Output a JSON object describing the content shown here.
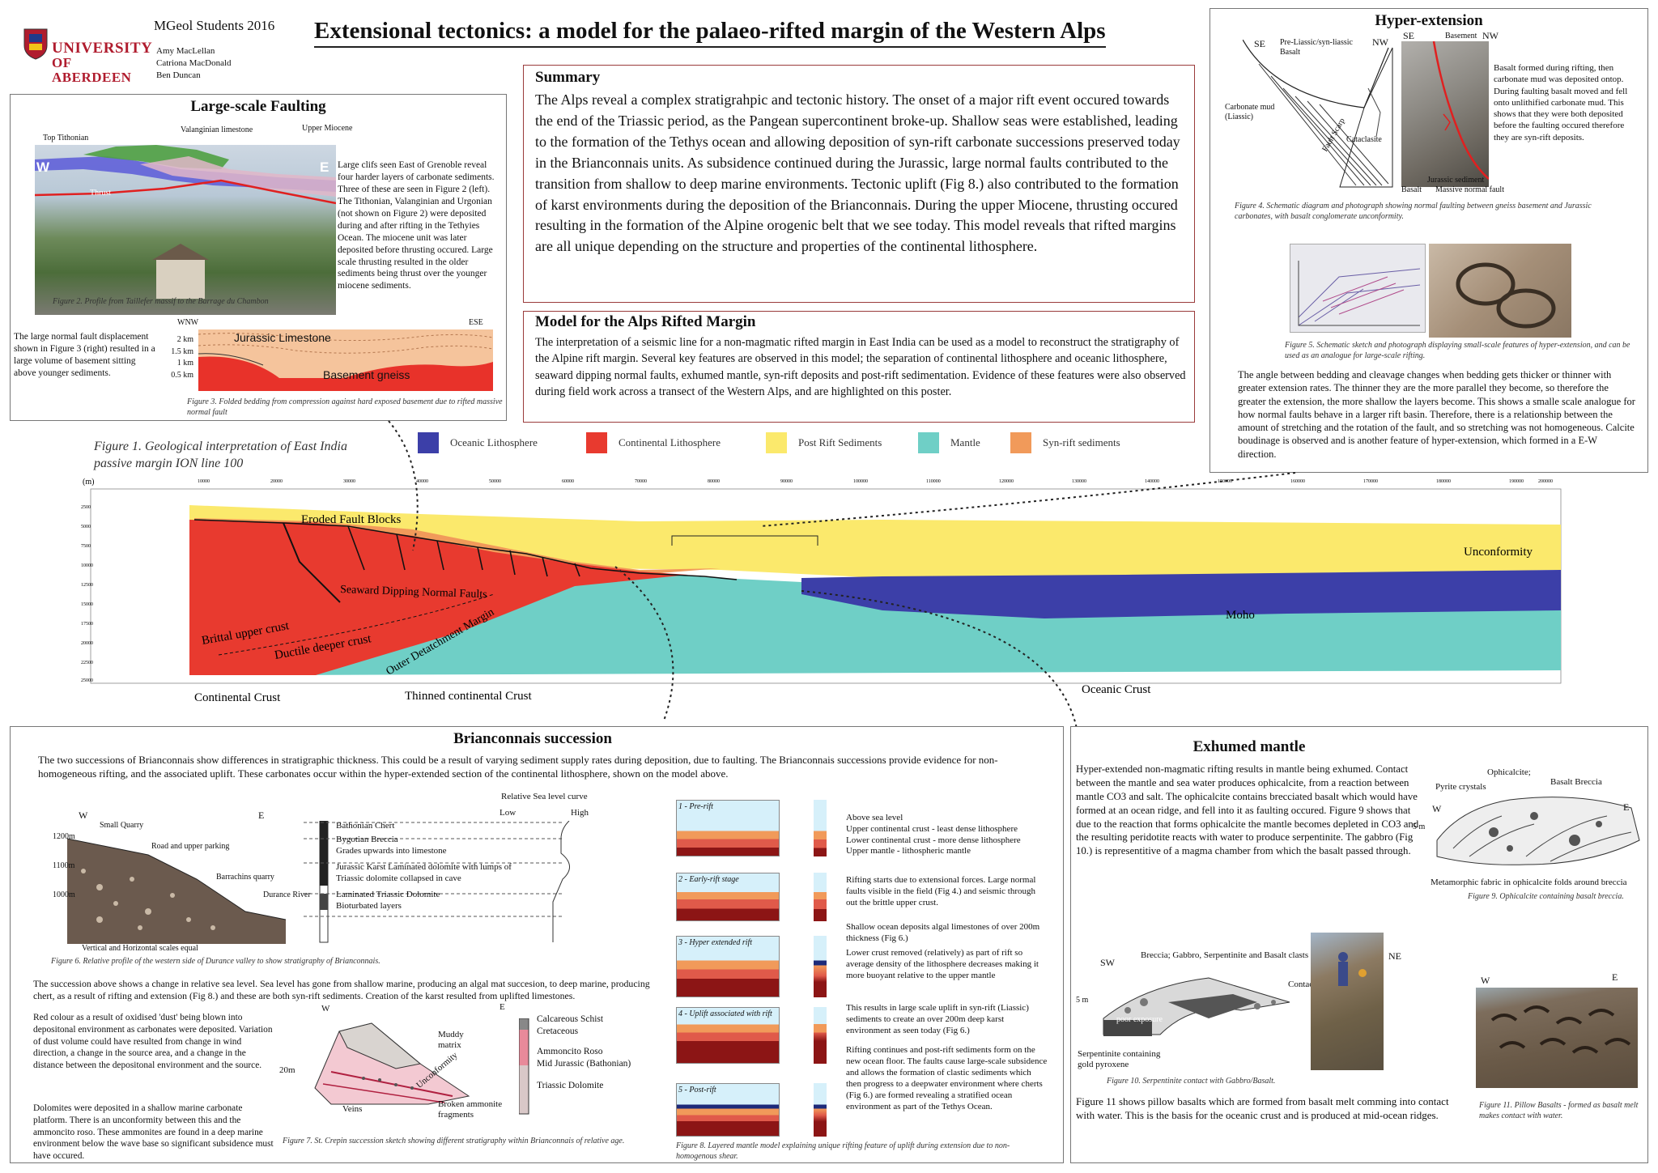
{
  "header": {
    "students": "MGeol Students 2016",
    "authors": [
      "Amy MacLellan",
      "Catriona MacDonald",
      "Ben Duncan"
    ],
    "university_line1": "UNIVERSITY",
    "university_line2": "OF ABERDEEN",
    "title": "Extensional tectonics: a model for the palaeo-rifted margin of the Western Alps"
  },
  "summary": {
    "title": "Summary",
    "text": "The Alps reveal a complex stratigrahpic and tectonic history. The onset of a major rift event occured towards the end of the Triassic period, as the Pangean supercontinent broke-up. Shallow seas were established, leading to the formation of the Tethys ocean and allowing deposition of syn-rift carbonate successions preserved today in the Brianconnais units. As subsidence continued during the Jurassic, large normal faults contributed to the transition from shallow to deep marine environments. Tectonic uplift (Fig 8.) also contributed to the formation of karst environments during the deposition of the Brianconnais. During the upper Miocene, thrusting occured resulting in the formation of the Alpine orogenic belt that we see today. This model reveals that rifted margins are all unique depending on the structure and properties of the continental lithosphere."
  },
  "model": {
    "title": "Model for the Alps Rifted Margin",
    "text": "The interpretation of a seismic line for a non-magmatic rifted margin in East India can be used as a model to reconstruct the stratigraphy of the Alpine rift margin. Several key features are observed in this model; the separation of continental lithosphere and oceanic lithosphere, seaward dipping normal faults, exhumed mantle, syn-rift deposits and post-rift sedimentation. Evidence of these features were also observed during field work across a transect of the Western Alps, and are highlighted on this poster."
  },
  "faulting": {
    "title": "Large-scale Faulting",
    "labels": {
      "top_tithonian": "Top Tithonian",
      "valanginian": "Valanginian limestone",
      "upper_miocene": "Upper Miocene",
      "w": "W",
      "e": "E",
      "thrust": "Thrust"
    },
    "text": "Large clifs seen East of Grenoble reveal four harder layers of carbonate sediments. Three of these are seen in Figure 2 (left). The Tithonian, Valanginian and Urgonian (not shown on Figure 2) were deposited during and after rifting in the Tethyies Ocean. The miocene unit was later deposited before thrusting occured. Large scale thrusting resulted in the older sediments being thrust over the younger miocene sediments.",
    "fig2_caption": "Figure 2. Profile from Taillefer massif to the Barrage du Chambon",
    "side_text": "The large normal fault displacement shown in Figure 3 (right) resulted in a large volume of basement sitting above younger sediments.",
    "fig3": {
      "wnw": "WNW",
      "ese": "ESE",
      "scale": [
        "2 km",
        "1.5 km",
        "1 km",
        "0.5 km"
      ],
      "jurassic": "Jurassic Limestone",
      "basement": "Basement gneiss"
    },
    "fig3_caption": "Figure 3. Folded bedding from compression against hard exposed basement due to rifted massive normal fault"
  },
  "hyper": {
    "title": "Hyper-extension",
    "fig4_labels": {
      "se": "SE",
      "nw": "NW",
      "pre_liassic": "Pre-Liassic/syn-liassic Basalt",
      "carbonate": "Carbonate mud (Liassic)",
      "fault_scarp": "Fault Scarp",
      "cataclasite": "Cataclasite",
      "basement": "Basement",
      "jurassic_sed": "Jurassic sediment",
      "basalt": "Basalt",
      "massive": "Massive normal fault"
    },
    "fig4_text": "Basalt formed during rifting, then carbonate mud was deposited ontop. During faulting basalt moved and fell onto unlithified carbonate mud. This shows that they were both deposited before the faulting occured therefore they are syn-rift deposits.",
    "fig4_caption": "Figure 4. Schematic diagram and photograph showing normal faulting between gneiss basement and Jurassic carbonates, with basalt conglomerate unconformity.",
    "fig5_caption": "Figure 5. Schematic sketch and photograph displaying small-scale features of hyper-extension, and can be used as an analogue for large-scale rifting.",
    "text": "The angle between bedding and cleavage changes when bedding gets thicker or thinner with greater extension rates. The thinner they are the more parallel they become, so therefore the greater the extension, the more shallow the layers become. This shows a smalle scale analogue for how normal faults behave in a larger rift basin. Therefore, there is a relationship between the amount of stretching and the rotation of the fault, and so stretching was not homogeneous. Calcite boudinage is observed and is another feature of hyper-extension, which formed in a E-W direction."
  },
  "fig1": {
    "caption": "Figure 1. Geological interpretation of East India passive margin ION line 100",
    "legend": [
      {
        "label": "Oceanic Lithosphere",
        "color": "#3c3fa8"
      },
      {
        "label": "Continental Lithosphere",
        "color": "#e83a2f"
      },
      {
        "label": "Post Rift Sediments",
        "color": "#fbe96c"
      },
      {
        "label": "Mantle",
        "color": "#6fcfc6"
      },
      {
        "label": "Syn-rift sediments",
        "color": "#f19a5a"
      }
    ],
    "y_unit": "(m)",
    "y_ticks": [
      "2500",
      "5000",
      "7500",
      "10000",
      "12500",
      "15000",
      "17500",
      "20000",
      "22500",
      "25000"
    ],
    "x_ticks": [
      "10000",
      "20000",
      "30000",
      "40000",
      "50000",
      "60000",
      "70000",
      "80000",
      "90000",
      "100000",
      "110000",
      "120000",
      "130000",
      "140000",
      "150000",
      "160000",
      "170000",
      "180000",
      "190000",
      "200000"
    ],
    "labels": {
      "eroded": "Eroded Fault Blocks",
      "seaward": "Seaward Dipping Normal Faults",
      "brittal": "Brittal upper crust",
      "ductile": "Ductile deeper crust",
      "outer": "Outer Detatchment Margin",
      "unconformity": "Unconformity",
      "moho": "Moho",
      "continental": "Continental Crust",
      "thinned": "Thinned continental Crust",
      "oceanic": "Oceanic Crust"
    }
  },
  "brianconnais": {
    "title": "Brianconnais succession",
    "intro": "The two successions of Brianconnais show differences in stratigraphic thickness. This could be a result of varying sediment supply rates during deposition, due to faulting. The Brianconnais successions provide evidence for non-homogeneous rifting, and the associated uplift. These carbonates occur within the hyper-extended section of the continental lithosphere, shown on the model above.",
    "fig6_labels": {
      "w": "W",
      "e": "E",
      "small_quarry": "Small Quarry",
      "road": "Road and upper parking",
      "barrachins": "Barrachins quarry",
      "durance": "Durance River",
      "scales": "Vertical and Horizontal scales equal",
      "h1200": "1200m",
      "h1100": "1100m",
      "h1000": "1000m"
    },
    "strat": [
      "Bathonian Chert",
      "Bygotian Breccia",
      "Grades upwards into limestone",
      "Jurassic Karst Laminated dolomite with lumps of Triassic dolomite collapsed in cave",
      "Laminated Triassic Dolomite",
      "Bioturbated layers"
    ],
    "sea_level": {
      "title": "Relative Sea level curve",
      "low": "Low",
      "high": "High"
    },
    "fig6_caption": "Figure 6. Relative profile of the western side of Durance valley to show stratigraphy of Brianconnais.",
    "succession_text": "The succession above shows a change in relative sea level. Sea level has gone from shallow marine, producing an algal mat succesion, to deep marine, producing chert, as a result of rifting and extension (Fig 8.) and these are both syn-rift sediments. Creation of the karst resulted from uplifted limestones.",
    "red_text": "Red colour as a result of oxidised 'dust' being blown into depositonal environment as carbonates were deposited. Variation of dust volume could have resulted from change in wind direction, a change in the source area, and a change in the distance between the depositonal environment and the source.",
    "dolomite_text": "Dolomites were deposited in a shallow marine carbonate platform. There is an unconformity between this and the ammoncito roso. These ammonites are found in a deep marine environment below the wave base so significant subsidence must have occured.",
    "fig7_labels": {
      "w": "W",
      "e": "E",
      "h20": "20m",
      "muddy": "Muddy matrix",
      "unconf": "Unconformity",
      "veins": "Veins",
      "broken": "Broken ammonite fragments"
    },
    "fig7_legend": [
      "Calcareous Schist",
      "Cretaceous",
      "Ammoncito Roso",
      "Mid Jurassic (Bathonian)",
      "Triassic Dolomite"
    ],
    "fig7_caption": "Figure 7. St. Crepin succession sketch showing different stratigraphy within Brianconnais of relative age."
  },
  "fig8": {
    "stages": [
      "1 - Pre-rift",
      "2 - Early-rift stage",
      "3 - Hyper extended rift",
      "4 - Uplift associated with rift",
      "5 - Post-rift"
    ],
    "layers": [
      "Above sea level",
      "Upper continental crust - least dense lithosphere",
      "Lower continental crust - more dense lithosphere",
      "Upper mantle - lithospheric mantle"
    ],
    "t2": "Rifting starts due to extensional forces. Large normal faults visible in the field (Fig 4.) and seismic through out the brittle upper crust.",
    "t3a": "Shallow ocean deposits algal limestones of over 200m thickness (Fig 6.)",
    "t3b": "Lower crust removed (relatively) as part of rift so average density of the lithosphere decreases making it more buoyant relative to the upper mantle",
    "t4": "This results in large scale uplift in syn-rift (Liassic) sediments to create an over 200m deep karst environment as seen today (Fig 6.)",
    "t5": "Rifting continues and post-rift sediments form on the new ocean floor. The faults cause large-scale subsidence and allows the formation of clastic sediments which then progress to a deepwater environment where cherts (Fig 6.) are formed revealing a stratified ocean environment as part of the Tethys Ocean.",
    "caption": "Figure 8. Layered mantle model explaining unique rifting feature of uplift during extension due to non-homogenous shear."
  },
  "mantle": {
    "title": "Exhumed mantle",
    "text": "Hyper-extended non-magmatic rifting results in mantle being exhumed. Contact between the mantle and sea water produces ophicalcite, from a reaction between mantle CO3 and salt. The ophicalcite contains brecciated basalt which would have formed at an ocean ridge, and fell into it as faulting occured. Figure 9 shows that due to the reaction that forms ophicalcite the mantle becomes depleted in CO3 and the resulting peridotite reacts with water to produce serpentinite. The gabbro (Fig 10.) is representitive of a magma chamber from which the basalt passed through.",
    "fig9_labels": {
      "ophicalcite": "Ophicalcite;",
      "pyrite": "Pyrite crystals",
      "basalt_breccia": "Basalt Breccia",
      "w": "W",
      "e": "E",
      "h5": "5 m",
      "metamorphic": "Metamorphic fabric in ophicalcite folds around breccia"
    },
    "fig9_caption": "Figure 9. Ophicalcite containing basalt breccia.",
    "fig10_labels": {
      "sw": "SW",
      "ne": "NE",
      "breccia": "Breccia; Gabbro, Serpentinite and Basalt clasts",
      "contact": "Contact",
      "poor": "poor exposure",
      "h5": "5 m",
      "serp": "Serpentinite containing gold pyroxene"
    },
    "fig10_caption": "Figure 10. Serpentinite contact with Gabbro/Basalt.",
    "fig11_text": "Figure 11 shows pillow basalts which are formed from basalt melt comming into contact with water. This is the basis for the oceanic crust and is produced at mid-ocean ridges.",
    "fig11_labels": {
      "w": "W",
      "e": "E"
    },
    "fig11_caption": "Figure 11. Pillow Basalts - formed as basalt melt makes contact with water."
  }
}
